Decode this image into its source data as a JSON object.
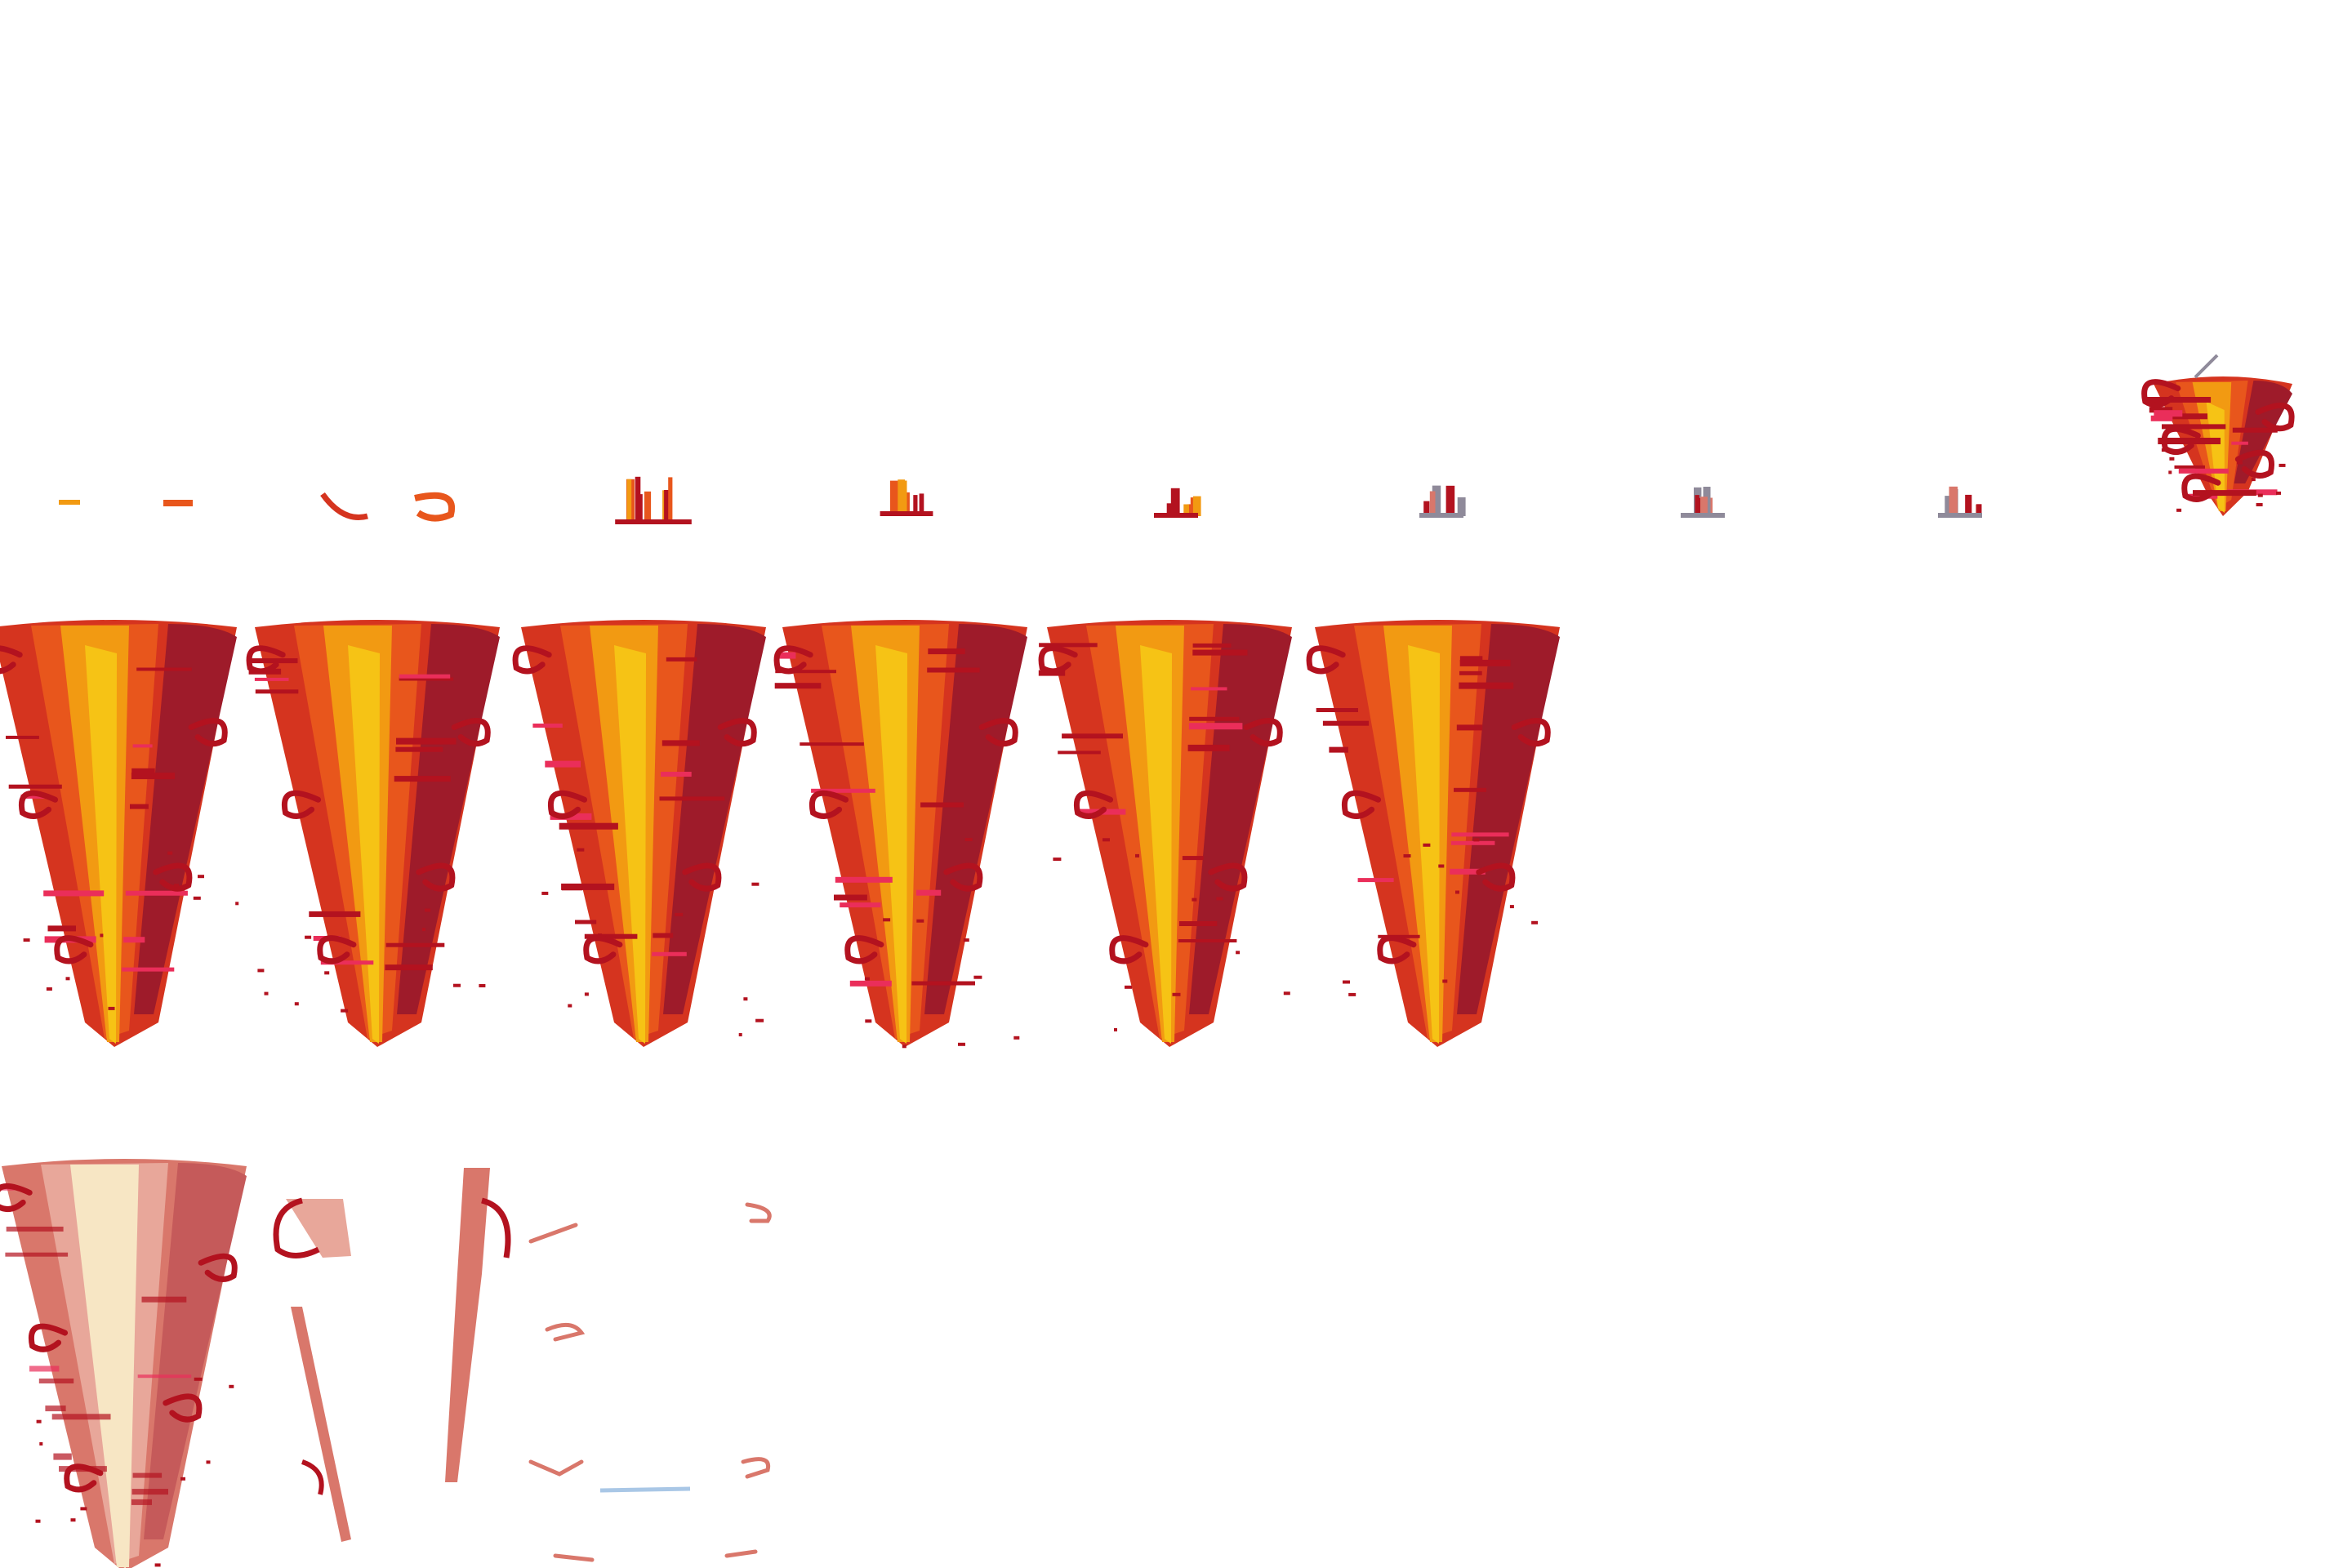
{
  "sheet": {
    "background": "#ffffff",
    "palette": {
      "deep_red": "#b3121f",
      "dark_red": "#9e1b2a",
      "red_orange": "#d5341f",
      "orange": "#e8561c",
      "amber": "#f29a12",
      "yellow": "#f6c315",
      "pink": "#ea2e5a",
      "faded": "#d9776b",
      "faded_light": "#e8a79a",
      "cream": "#f7e6c4",
      "ghost_blue": "#a9c7e6",
      "smoke_grey": "#8f8a9a"
    },
    "rows": {
      "spawn": {
        "frame_count": 9,
        "frames": [
          "spark",
          "embers",
          "flames",
          "sprouts",
          "sprout-small",
          "sprout-faint",
          "sprout-grey",
          "sprout-grey",
          "tornado-mini"
        ]
      },
      "loop": {
        "frame_count": 6
      },
      "dissipate": {
        "frame_count": 3,
        "frames": [
          "fading-tornado",
          "remnant-strands",
          "remnant-wisps"
        ]
      }
    }
  }
}
